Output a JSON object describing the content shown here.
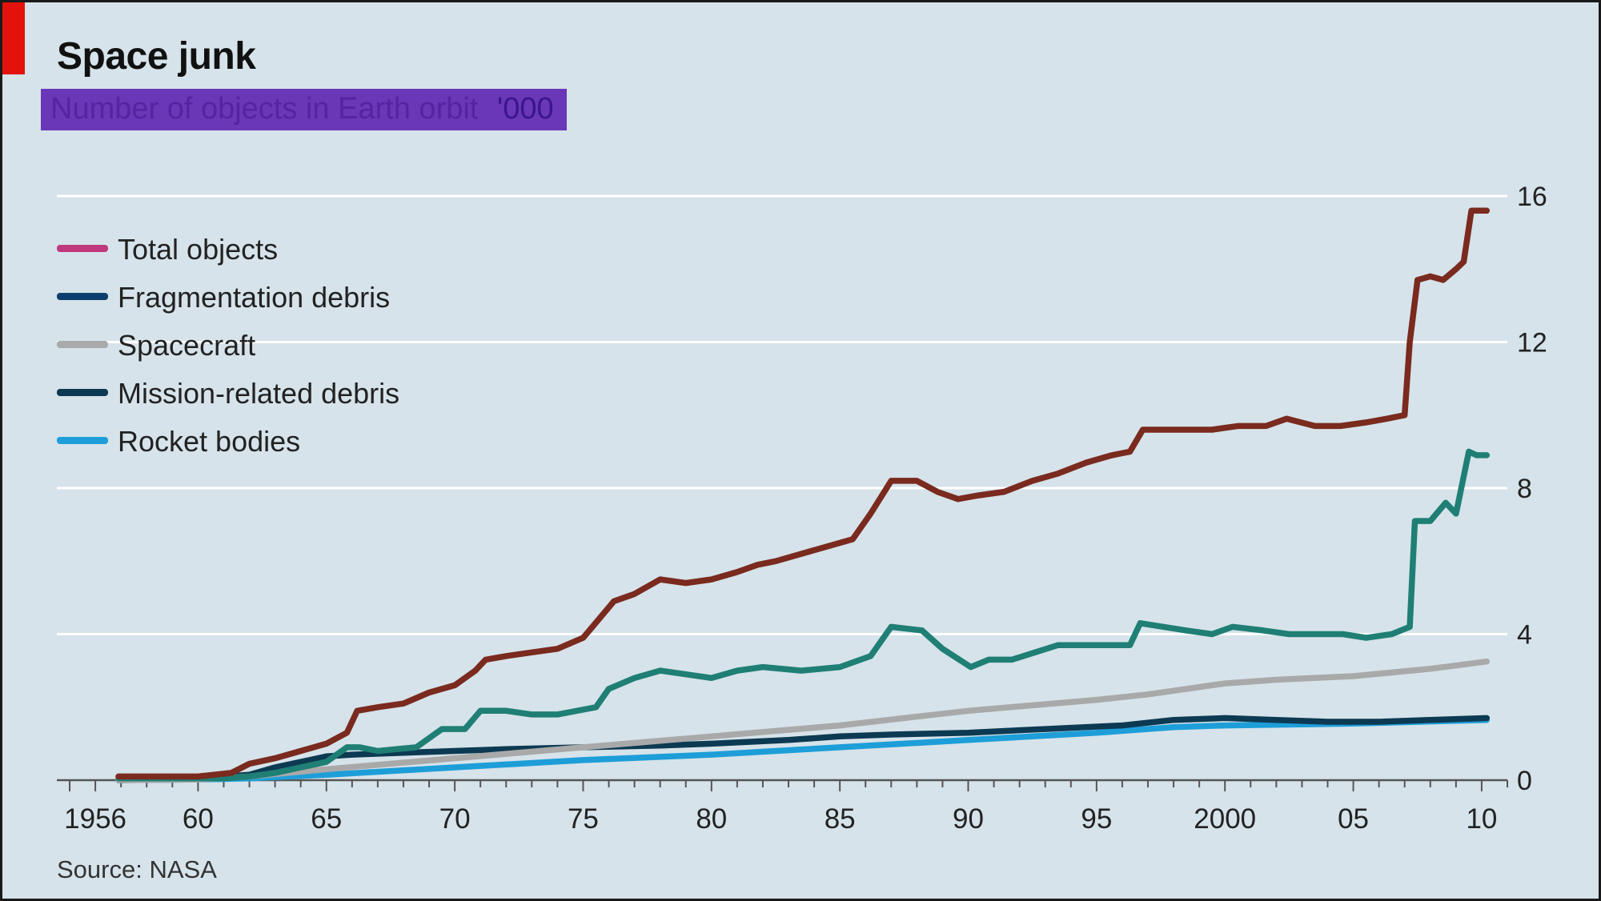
{
  "chart_data": {
    "type": "line",
    "title": "Space junk",
    "subtitle": "Number of objects in Earth orbit",
    "unit": "'000",
    "source": "Source: NASA",
    "ylim": [
      0,
      16
    ],
    "yticks": [
      "16",
      "12",
      "8",
      "4",
      "0"
    ],
    "xlim": [
      1954.5,
      2011
    ],
    "xticks": [
      {
        "year": 1956,
        "label": "1956"
      },
      {
        "year": 1960,
        "label": "60"
      },
      {
        "year": 1965,
        "label": "65"
      },
      {
        "year": 1970,
        "label": "70"
      },
      {
        "year": 1975,
        "label": "75"
      },
      {
        "year": 1980,
        "label": "80"
      },
      {
        "year": 1985,
        "label": "85"
      },
      {
        "year": 1990,
        "label": "90"
      },
      {
        "year": 1995,
        "label": "95"
      },
      {
        "year": 2000,
        "label": "2000"
      },
      {
        "year": 2005,
        "label": "05"
      },
      {
        "year": 2010,
        "label": "10"
      }
    ],
    "grid": true,
    "legend_position": "top-left",
    "series": [
      {
        "name": "Total objects",
        "color": "#7a2a1e",
        "x": [
          1956.9,
          1960,
          1961.3,
          1962,
          1963,
          1964,
          1965,
          1965.8,
          1966.2,
          1967,
          1968,
          1969,
          1970,
          1970.8,
          1971.2,
          1972,
          1973,
          1974,
          1975,
          1975.6,
          1976.2,
          1977,
          1978,
          1979,
          1980,
          1981,
          1981.8,
          1982.5,
          1983.5,
          1984.5,
          1985.5,
          1986.2,
          1987,
          1988,
          1988.8,
          1989.6,
          1990.4,
          1991.4,
          1992.5,
          1993.5,
          1994.6,
          1995.6,
          1996.3,
          1996.8,
          1998,
          1999.5,
          2000.5,
          2001.6,
          2002.4,
          2003.5,
          2004.5,
          2005.5,
          2006.3,
          2007,
          2007.2,
          2007.5,
          2008,
          2008.5,
          2009,
          2009.3,
          2009.6,
          2010.2
        ],
        "values": [
          0.1,
          0.1,
          0.2,
          0.45,
          0.6,
          0.8,
          1.0,
          1.3,
          1.9,
          2.0,
          2.1,
          2.4,
          2.6,
          3.0,
          3.3,
          3.4,
          3.5,
          3.6,
          3.9,
          4.4,
          4.9,
          5.1,
          5.5,
          5.4,
          5.5,
          5.7,
          5.9,
          6.0,
          6.2,
          6.4,
          6.6,
          7.3,
          8.2,
          8.2,
          7.9,
          7.7,
          7.8,
          7.9,
          8.2,
          8.4,
          8.7,
          8.9,
          9.0,
          9.6,
          9.6,
          9.6,
          9.7,
          9.7,
          9.9,
          9.7,
          9.7,
          9.8,
          9.9,
          10.0,
          12.0,
          13.7,
          13.8,
          13.7,
          14.0,
          14.2,
          15.6,
          15.6
        ]
      },
      {
        "name": "Fragmentation debris",
        "color": "#1f7f74",
        "x": [
          1956.9,
          1961,
          1962,
          1963,
          1964,
          1965,
          1965.8,
          1966.3,
          1967,
          1968.5,
          1969.5,
          1970.4,
          1971,
          1972,
          1973,
          1974,
          1975.5,
          1976,
          1977,
          1978,
          1980,
          1981,
          1982,
          1983.5,
          1985,
          1986.2,
          1987,
          1988.2,
          1989,
          1990.1,
          1990.8,
          1991.7,
          1992.6,
          1993.5,
          1995,
          1996.3,
          1996.7,
          1998.5,
          1999.5,
          2000.3,
          2001.5,
          2002.5,
          2003.5,
          2004.6,
          2005.5,
          2006.5,
          2007.2,
          2007.4,
          2008,
          2008.6,
          2009,
          2009.5,
          2009.8,
          2010.2
        ],
        "values": [
          0.05,
          0.05,
          0.1,
          0.2,
          0.35,
          0.5,
          0.9,
          0.9,
          0.8,
          0.9,
          1.4,
          1.4,
          1.9,
          1.9,
          1.8,
          1.8,
          2.0,
          2.5,
          2.8,
          3.0,
          2.8,
          3.0,
          3.1,
          3.0,
          3.1,
          3.4,
          4.2,
          4.1,
          3.6,
          3.1,
          3.3,
          3.3,
          3.5,
          3.7,
          3.7,
          3.7,
          4.3,
          4.1,
          4.0,
          4.2,
          4.1,
          4.0,
          4.0,
          4.0,
          3.9,
          4.0,
          4.2,
          7.1,
          7.1,
          7.6,
          7.3,
          9.0,
          8.9,
          8.9
        ]
      },
      {
        "name": "Spacecraft",
        "color": "#a9a9a9",
        "x": [
          1956.9,
          1960,
          1962,
          1965,
          1970,
          1975,
          1980,
          1985,
          1990,
          1995,
          1997,
          2000,
          2002,
          2005,
          2008,
          2010.2
        ],
        "values": [
          0.0,
          0.02,
          0.1,
          0.3,
          0.6,
          0.9,
          1.2,
          1.5,
          1.9,
          2.2,
          2.35,
          2.65,
          2.75,
          2.85,
          3.05,
          3.25
        ]
      },
      {
        "name": "Mission-related debris",
        "color": "#0c3a52",
        "x": [
          1956.9,
          1960,
          1962,
          1963,
          1964,
          1965,
          1966,
          1968,
          1970,
          1972,
          1975,
          1978,
          1980,
          1983,
          1985,
          1987,
          1990,
          1993,
          1996,
          1998,
          2000,
          2002,
          2004,
          2006,
          2008,
          2010.2
        ],
        "values": [
          0.0,
          0.05,
          0.15,
          0.35,
          0.5,
          0.65,
          0.7,
          0.75,
          0.8,
          0.85,
          0.9,
          0.95,
          1.0,
          1.1,
          1.2,
          1.25,
          1.3,
          1.4,
          1.5,
          1.65,
          1.7,
          1.65,
          1.6,
          1.6,
          1.65,
          1.7
        ]
      },
      {
        "name": "Rocket bodies",
        "color": "#1e9ed8",
        "x": [
          1956.9,
          1960,
          1962,
          1965,
          1970,
          1975,
          1980,
          1985,
          1990,
          1995,
          1998,
          2000,
          2005,
          2010.2
        ],
        "values": [
          0.0,
          0.02,
          0.05,
          0.15,
          0.35,
          0.55,
          0.7,
          0.9,
          1.1,
          1.3,
          1.45,
          1.5,
          1.55,
          1.65
        ]
      }
    ]
  }
}
